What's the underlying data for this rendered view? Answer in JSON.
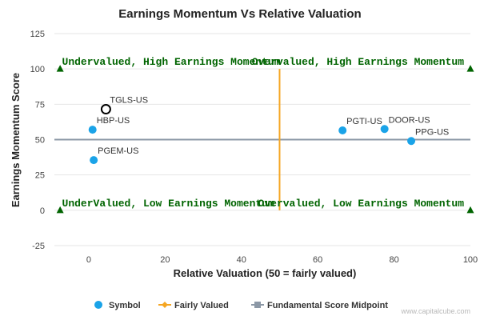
{
  "chart_data": {
    "type": "scatter",
    "title": "Earnings Momentum Vs Relative Valuation",
    "xlabel": "Relative Valuation (50 = fairly valued)",
    "ylabel": "Earnings Momentum Score",
    "xlim": [
      -9,
      100
    ],
    "ylim": [
      -25,
      125
    ],
    "xticks": [
      0,
      20,
      40,
      60,
      80,
      100
    ],
    "yticks": [
      -25,
      0,
      25,
      50,
      75,
      100,
      125
    ],
    "grid": "horizontal",
    "points": [
      {
        "label": "TGLS-US",
        "x": 4.5,
        "y": 71.5,
        "style": "hollow"
      },
      {
        "label": "HBP-US",
        "x": 1,
        "y": 57,
        "style": "filled"
      },
      {
        "label": "PGEM-US",
        "x": 1.3,
        "y": 35.5,
        "style": "filled"
      },
      {
        "label": "PGTI-US",
        "x": 66.5,
        "y": 56.5,
        "style": "filled"
      },
      {
        "label": "DOOR-US",
        "x": 77.5,
        "y": 57.5,
        "style": "filled"
      },
      {
        "label": "PPG-US",
        "x": 84.5,
        "y": 49,
        "style": "filled"
      }
    ],
    "fairly_valued_line": {
      "x": 50,
      "y_from": 0,
      "y_to": 100
    },
    "midpoint_line": {
      "y": 50
    },
    "corner_markers": [
      {
        "x": -7.5,
        "y": 100
      },
      {
        "x": 100,
        "y": 100
      },
      {
        "x": -7.5,
        "y": 0
      },
      {
        "x": 100,
        "y": 0
      }
    ],
    "quadrant_labels": [
      {
        "text": "Undervalued, High Earnings Momentum",
        "x": -7,
        "y": 100,
        "anchor": "start"
      },
      {
        "text": "Overvalued, High Earnings Momentum",
        "x": 100,
        "y": 100,
        "anchor": "end"
      },
      {
        "text": "UnderValued, Low Earnings Momentum",
        "x": -7,
        "y": 0,
        "anchor": "start"
      },
      {
        "text": "Overvalued, Low Earnings Momentum",
        "x": 100,
        "y": 0,
        "anchor": "end"
      }
    ],
    "legend": {
      "placement": "bottom",
      "items": [
        {
          "label": "Symbol",
          "marker": "circle",
          "color": "#1aa3e8"
        },
        {
          "label": "Fairly Valued",
          "marker": "diamond-line",
          "color": "#f5a623"
        },
        {
          "label": "Fundamental Score Midpoint",
          "marker": "square-line",
          "color": "#8c98a6"
        }
      ]
    },
    "colors": {
      "point": "#1aa3e8",
      "hollow_point": "#000000",
      "fairly_valued": "#f5a623",
      "midpoint": "#8c98a6",
      "quadrant_text": "#006400",
      "marker": "#006400"
    }
  },
  "watermark": "www.capitalcube.com"
}
